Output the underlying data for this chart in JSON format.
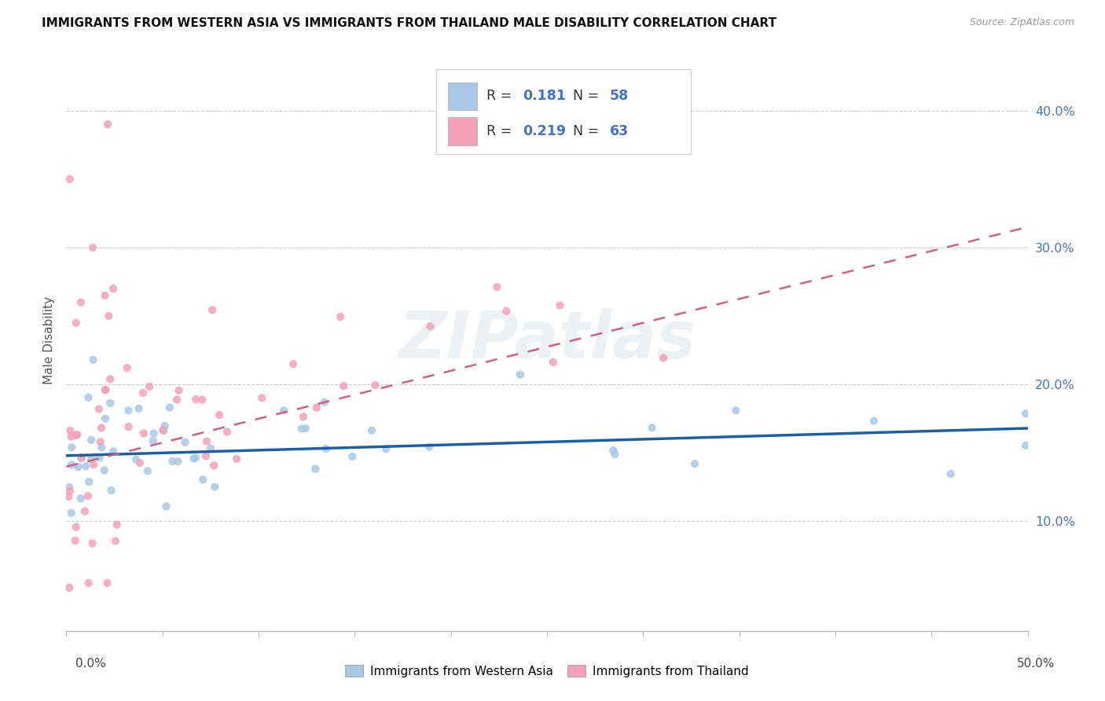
{
  "title": "IMMIGRANTS FROM WESTERN ASIA VS IMMIGRANTS FROM THAILAND MALE DISABILITY CORRELATION CHART",
  "source": "Source: ZipAtlas.com",
  "ylabel": "Male Disability",
  "y_ticks": [
    0.1,
    0.2,
    0.3,
    0.4
  ],
  "y_tick_labels": [
    "10.0%",
    "20.0%",
    "30.0%",
    "40.0%"
  ],
  "x_range": [
    0.0,
    0.5
  ],
  "y_range": [
    0.02,
    0.445
  ],
  "color_blue": "#a8c8e8",
  "color_pink": "#f4a0b8",
  "color_line_blue": "#1a5fa8",
  "color_line_pink": "#d06080",
  "color_text_blue": "#4472c4",
  "color_text_dark": "#333333",
  "watermark_text": "ZIPatlas",
  "legend_r1_label": "R = ",
  "legend_r1_val": "0.181",
  "legend_n1_label": "N = ",
  "legend_n1_val": "58",
  "legend_r2_label": "R = ",
  "legend_r2_val": "0.219",
  "legend_n2_label": "N = ",
  "legend_n2_val": "63",
  "wa_line_x0": 0.0,
  "wa_line_y0": 0.148,
  "wa_line_x1": 0.5,
  "wa_line_y1": 0.168,
  "th_line_x0": 0.0,
  "th_line_y0": 0.14,
  "th_line_x1": 0.5,
  "th_line_y1": 0.315
}
